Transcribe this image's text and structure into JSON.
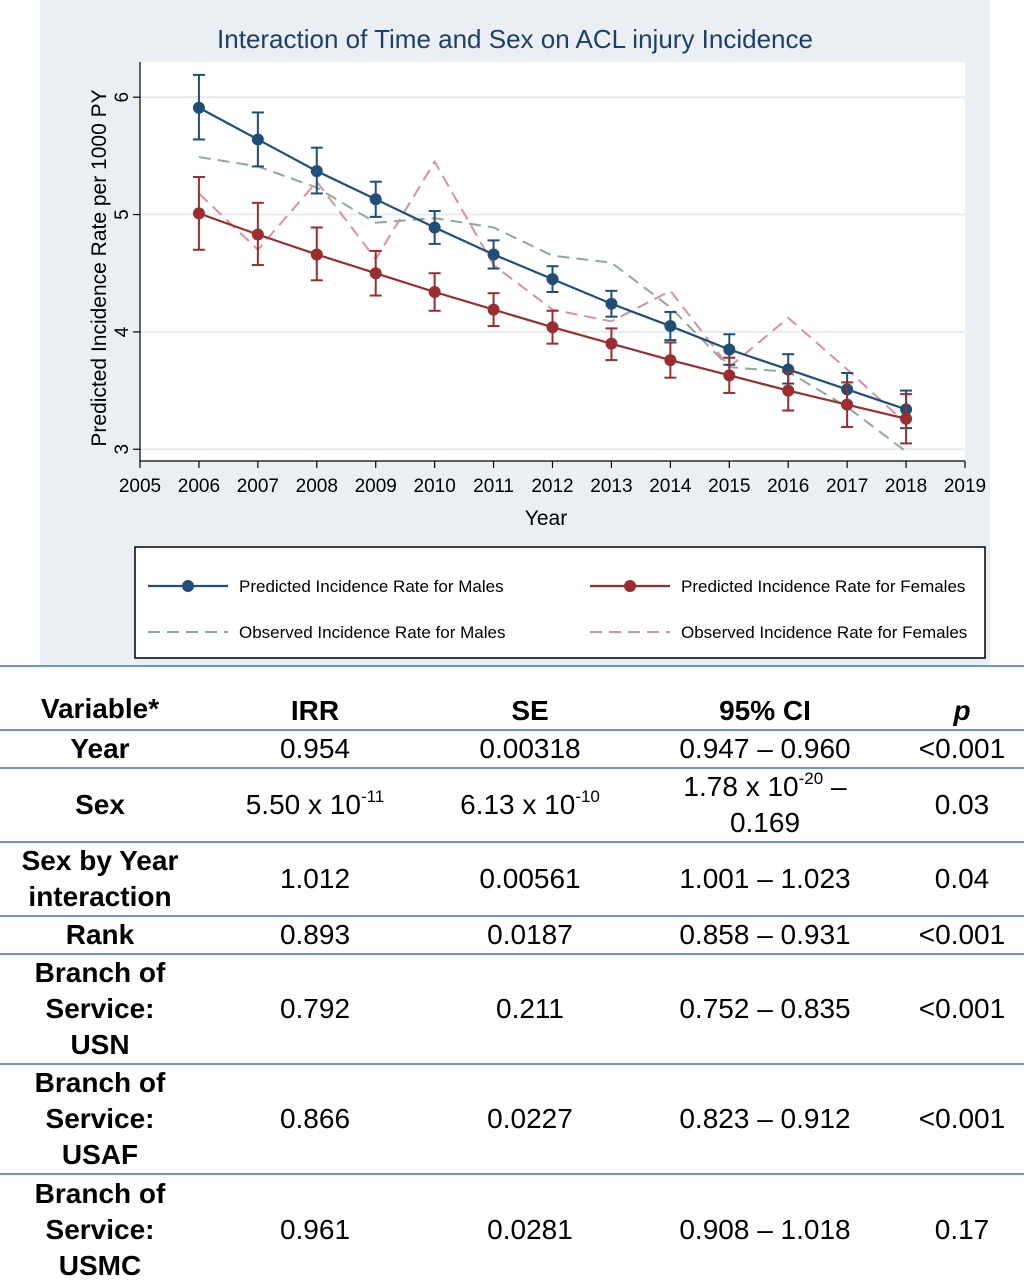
{
  "chart_data": {
    "type": "line",
    "title": "Interaction of Time and Sex on ACL injury Incidence",
    "xlabel": "Year",
    "ylabel": "Predicted Incidence Rate per 1000 PY",
    "xlim": [
      2005,
      2019
    ],
    "ylim": [
      2.9,
      6.3
    ],
    "xticks": [
      2005,
      2006,
      2007,
      2008,
      2009,
      2010,
      2011,
      2012,
      2013,
      2014,
      2015,
      2016,
      2017,
      2018,
      2019
    ],
    "yticks": [
      3,
      4,
      5,
      6
    ],
    "grid": true,
    "legend_position": "bottom",
    "x": [
      2006,
      2007,
      2008,
      2009,
      2010,
      2011,
      2012,
      2013,
      2014,
      2015,
      2016,
      2017,
      2018
    ],
    "series": [
      {
        "name": "Predicted Incidence Rate for Males",
        "color": "#1f4e79",
        "style": "solid-marker",
        "values": [
          5.91,
          5.64,
          5.37,
          5.13,
          4.89,
          4.66,
          4.45,
          4.24,
          4.05,
          3.85,
          3.68,
          3.51,
          3.34
        ],
        "lower": [
          5.64,
          5.41,
          5.18,
          4.98,
          4.75,
          4.54,
          4.34,
          4.13,
          3.93,
          3.72,
          3.56,
          3.37,
          3.18
        ],
        "upper": [
          6.19,
          5.87,
          5.57,
          5.28,
          5.03,
          4.78,
          4.56,
          4.35,
          4.17,
          3.98,
          3.81,
          3.65,
          3.5
        ]
      },
      {
        "name": "Predicted Incidence Rate for Females",
        "color": "#9b2d30",
        "style": "solid-marker",
        "values": [
          5.01,
          4.83,
          4.66,
          4.5,
          4.34,
          4.19,
          4.04,
          3.9,
          3.76,
          3.63,
          3.5,
          3.38,
          3.26
        ],
        "lower": [
          4.7,
          4.57,
          4.44,
          4.31,
          4.18,
          4.05,
          3.9,
          3.76,
          3.61,
          3.48,
          3.33,
          3.19,
          3.05
        ],
        "upper": [
          5.32,
          5.1,
          4.89,
          4.69,
          4.5,
          4.33,
          4.18,
          4.03,
          3.91,
          3.78,
          3.66,
          3.57,
          3.47
        ]
      },
      {
        "name": "Observed Incidence Rate for Males",
        "color": "#8fa89a",
        "style": "dashed",
        "values": [
          5.49,
          5.41,
          5.23,
          4.93,
          4.97,
          4.89,
          4.65,
          4.59,
          4.21,
          3.7,
          3.66,
          3.36,
          2.98
        ]
      },
      {
        "name": "Observed Incidence Rate for Females",
        "color": "#d98fa6",
        "style": "dashed",
        "values": [
          5.18,
          4.7,
          5.28,
          4.62,
          5.45,
          4.57,
          4.19,
          4.09,
          4.35,
          3.7,
          4.12,
          3.68,
          3.22
        ]
      }
    ]
  },
  "table": {
    "headers": [
      "Variable*",
      "IRR",
      "SE",
      "95% CI",
      "p"
    ],
    "rows": [
      {
        "variable": "Year",
        "irr": "0.954",
        "se": "0.00318",
        "ci": "0.947 – 0.960",
        "p": "<0.001"
      },
      {
        "variable": "Sex",
        "irr_base": "5.50 x 10",
        "irr_exp": "-11",
        "se_base": "6.13 x 10",
        "se_exp": "-10",
        "ci_base": "1.78 x 10",
        "ci_exp": "-20",
        "ci_tail": " –",
        "ci_line2": "0.169",
        "p": "0.03"
      },
      {
        "variable_line1": "Sex by Year",
        "variable_line2": "interaction",
        "irr": "1.012",
        "se": "0.00561",
        "ci": "1.001 – 1.023",
        "p": "0.04"
      },
      {
        "variable": "Rank",
        "irr": "0.893",
        "se": "0.0187",
        "ci": "0.858 – 0.931",
        "p": "<0.001"
      },
      {
        "variable_line1": "Branch of",
        "variable_line2": "Service:",
        "variable_line3": "USN",
        "irr": "0.792",
        "se": "0.211",
        "ci": "0.752 – 0.835",
        "p": "<0.001"
      },
      {
        "variable_line1": "Branch of",
        "variable_line2": "Service:",
        "variable_line3": "USAF",
        "irr": "0.866",
        "se": "0.0227",
        "ci": "0.823 – 0.912",
        "p": "<0.001"
      },
      {
        "variable_line1": "Branch of",
        "variable_line2": "Service:",
        "variable_line3": "USMC",
        "irr": "0.961",
        "se": "0.0281",
        "ci": "0.908 – 1.018",
        "p": "0.17"
      }
    ]
  }
}
